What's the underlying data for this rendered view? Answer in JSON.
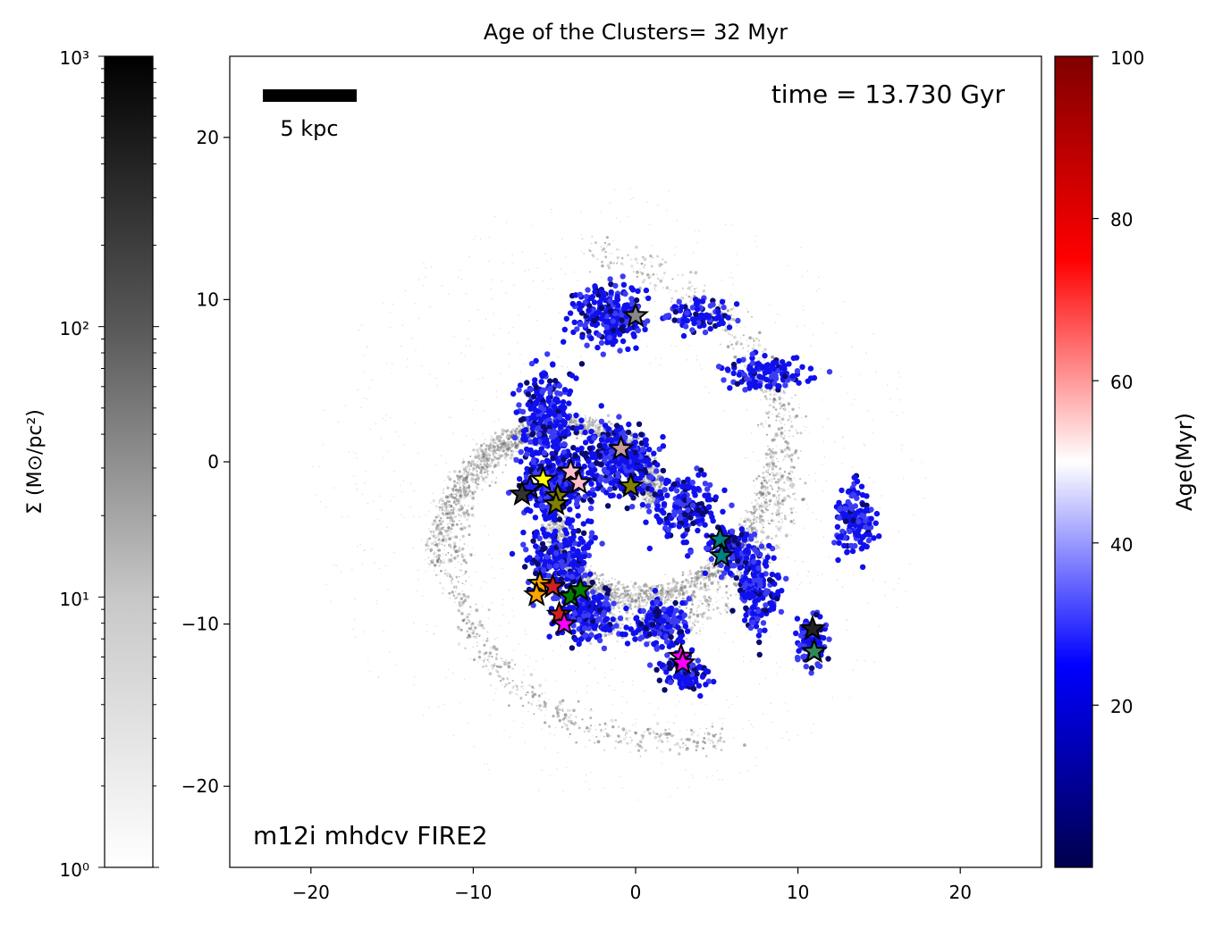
{
  "title": "Age of the Clusters= 32 Myr",
  "time_label": "time = 13.730 Gyr",
  "sim_label": "m12i mhdcv FIRE2",
  "scalebar_label": "5 kpc",
  "colors": {
    "cluster_dots": "#1e1ef0",
    "density_gray": "#808080"
  },
  "chart_data": {
    "type": "scatter",
    "title": "Age of the Clusters= 32 Myr",
    "xlabel": "",
    "ylabel": "",
    "xlim": [
      -25,
      25
    ],
    "ylim": [
      -25,
      25
    ],
    "xticks": [
      -20,
      -10,
      0,
      10,
      20
    ],
    "yticks": [
      -20,
      -10,
      0,
      10,
      20
    ],
    "xtick_labels": [
      "−20",
      "−10",
      "0",
      "10",
      "20"
    ],
    "ytick_labels": [
      "−20",
      "−10",
      "0",
      "10",
      "20"
    ],
    "scalebar_kpc": 5,
    "left_colorbar": {
      "label": "Σ (M⊙/pc²)",
      "scale": "log",
      "range": [
        1,
        1000
      ],
      "ticks": [
        1,
        10,
        100,
        1000
      ],
      "tick_labels": [
        "10⁰",
        "10¹",
        "10²",
        "10³"
      ],
      "colormap": "white-to-black"
    },
    "right_colorbar": {
      "label": "Age(Myr)",
      "scale": "linear",
      "range": [
        0,
        100
      ],
      "ticks": [
        20,
        40,
        60,
        80,
        100
      ],
      "tick_labels": [
        "20",
        "40",
        "60",
        "80",
        "100"
      ],
      "colormap": "seismic"
    },
    "star_clusters": [
      {
        "x": 0.0,
        "y": 9.0,
        "color": "#888888"
      },
      {
        "x": -0.9,
        "y": 0.8,
        "color": "#c89a9a"
      },
      {
        "x": -4.0,
        "y": -0.6,
        "color": "#ffc0cb"
      },
      {
        "x": -3.5,
        "y": -1.3,
        "color": "#ffc0cb"
      },
      {
        "x": -5.7,
        "y": -1.1,
        "color": "#ffff00"
      },
      {
        "x": -6.5,
        "y": -1.6,
        "color": "#1e1ef0"
      },
      {
        "x": -7.0,
        "y": -2.0,
        "color": "#333333"
      },
      {
        "x": -4.8,
        "y": -2.1,
        "color": "#808000"
      },
      {
        "x": -4.9,
        "y": -2.6,
        "color": "#808000"
      },
      {
        "x": -0.3,
        "y": -1.5,
        "color": "#808000"
      },
      {
        "x": 5.2,
        "y": -4.8,
        "color": "#008080"
      },
      {
        "x": 5.3,
        "y": -5.8,
        "color": "#008080"
      },
      {
        "x": -5.9,
        "y": -7.5,
        "color": "#ffa500"
      },
      {
        "x": -6.1,
        "y": -8.2,
        "color": "#ffa500"
      },
      {
        "x": -5.1,
        "y": -7.7,
        "color": "#d02020"
      },
      {
        "x": -4.0,
        "y": -8.3,
        "color": "#008000"
      },
      {
        "x": -3.4,
        "y": -7.9,
        "color": "#008000"
      },
      {
        "x": -4.7,
        "y": -9.4,
        "color": "#d02020"
      },
      {
        "x": -4.4,
        "y": -10.0,
        "color": "#ff00ff"
      },
      {
        "x": 2.8,
        "y": -12.0,
        "color": "#ff00ff"
      },
      {
        "x": 2.9,
        "y": -12.4,
        "color": "#ff00ff"
      },
      {
        "x": 10.9,
        "y": -10.3,
        "color": "#222222"
      },
      {
        "x": 11.0,
        "y": -11.7,
        "color": "#2e8b57"
      }
    ]
  }
}
